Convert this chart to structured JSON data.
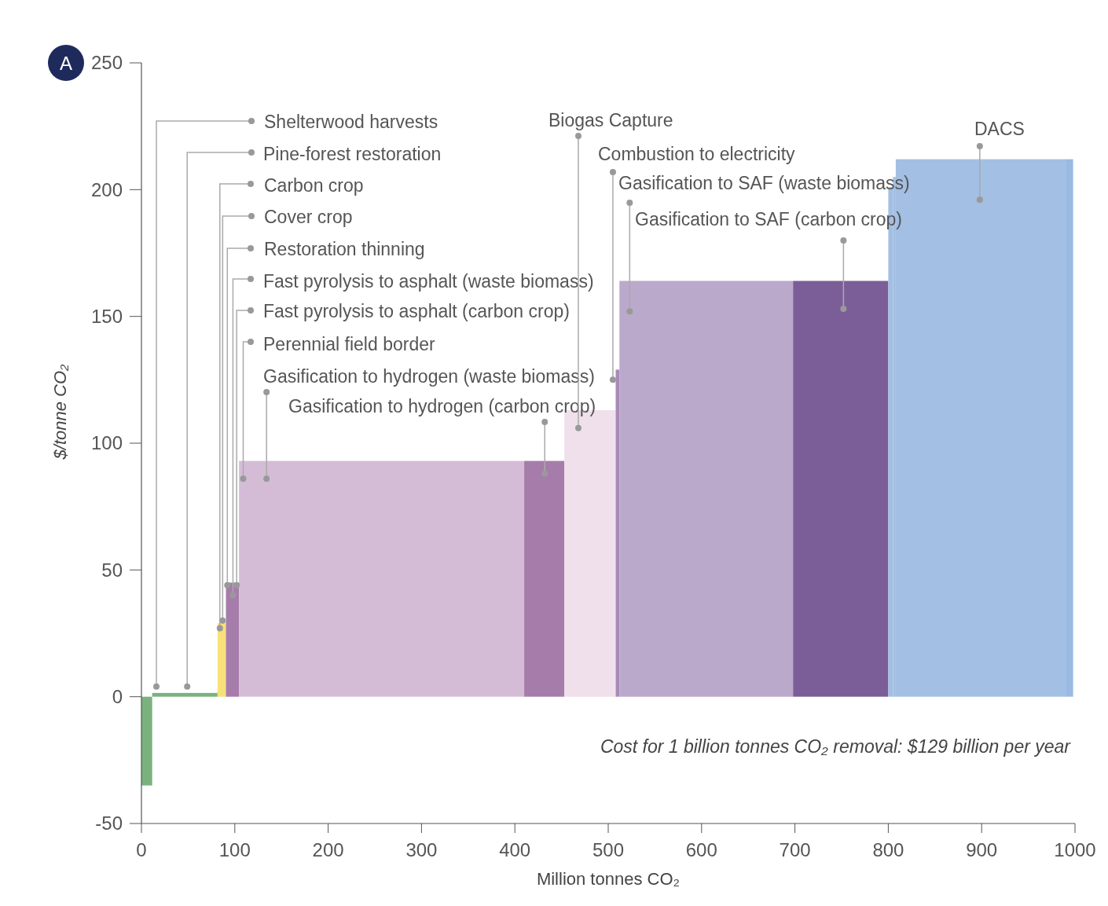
{
  "chart_data": {
    "type": "histogram",
    "title": "A",
    "xlabel": "Million tonnes CO₂",
    "ylabel": "$/tonne CO₂",
    "bins": [
      0,
      11.5,
      81.5,
      90.5,
      104.5,
      410,
      453,
      508,
      512,
      698,
      800,
      805,
      808,
      990,
      998
    ],
    "values": [
      -35,
      1.5,
      29,
      45,
      93,
      93,
      113,
      129,
      164,
      164,
      201,
      205,
      212,
      212
    ],
    "colors": [
      "#7ab27e",
      "#7ab27e",
      "#f8e07a",
      "#a67caa",
      "#d4bcd6",
      "#a67caa",
      "#efe0ec",
      "#a88ab8",
      "#baa9cb",
      "#7b5e98",
      "#a3bfe3",
      "#a3bfe3",
      "#a3bfe3",
      "#9ab9e3"
    ],
    "xlim": [
      0,
      1000
    ],
    "xticks": [
      0,
      100,
      200,
      300,
      400,
      500,
      600,
      700,
      800,
      900,
      1000
    ],
    "ylim": [
      -50,
      250
    ],
    "yticks": [
      -50,
      0,
      50,
      100,
      150,
      200,
      250
    ],
    "annotations": [
      {
        "text": "Shelterwood harvests",
        "x": 16,
        "y": 4
      },
      {
        "text": "Pine-forest restoration",
        "x": 49,
        "y": 4
      },
      {
        "text": "Carbon crop",
        "x": 84,
        "y": 27
      },
      {
        "text": "Cover crop",
        "x": 87,
        "y": 30
      },
      {
        "text": "Restoration thinning",
        "x": 92,
        "y": 44
      },
      {
        "text": "Fast pyrolysis to asphalt (waste biomass)",
        "x": 98,
        "y": 40
      },
      {
        "text": "Fast pyrolysis to asphalt (carbon crop)",
        "x": 102,
        "y": 44
      },
      {
        "text": "Perennial field border",
        "x": 109,
        "y": 86
      },
      {
        "text": "Gasification to hydrogen (waste biomass)",
        "x": 134,
        "y": 86
      },
      {
        "text": "Gasification to hydrogen (carbon crop)",
        "x": 432,
        "y": 88
      },
      {
        "text": "Biogas Capture",
        "x": 468,
        "y": 106
      },
      {
        "text": "Combustion to electricity",
        "x": 505,
        "y": 125
      },
      {
        "text": "Gasification to SAF (waste biomass)",
        "x": 523,
        "y": 152
      },
      {
        "text": "Gasification to SAF (carbon crop)",
        "x": 752,
        "y": 153
      },
      {
        "text": "DACS",
        "x": 898,
        "y": 196
      },
      "Cost for 1 billion tonnes CO₂ removal: $129 billion per year"
    ]
  }
}
